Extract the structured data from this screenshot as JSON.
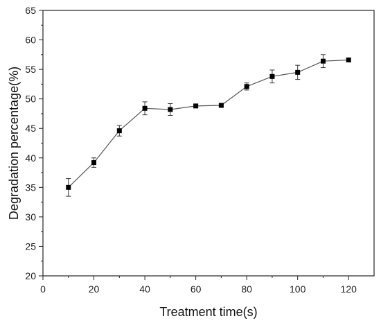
{
  "chart_data": {
    "type": "line",
    "title": "",
    "xlabel": "Treatment time(s)",
    "ylabel": "Degradation percentage(%)",
    "xlim": [
      0,
      130
    ],
    "ylim": [
      20,
      65
    ],
    "xticks": [
      0,
      20,
      40,
      60,
      80,
      100,
      120
    ],
    "yticks": [
      20,
      25,
      30,
      35,
      40,
      45,
      50,
      55,
      60,
      65
    ],
    "grid": false,
    "legend": "none",
    "marker": "square",
    "line_color": "#555555",
    "marker_color": "#000000",
    "series": [
      {
        "x": [
          10,
          20,
          30,
          40,
          50,
          60,
          70,
          80,
          90,
          100,
          110,
          120
        ],
        "values": [
          35.0,
          39.2,
          44.6,
          48.4,
          48.2,
          48.8,
          48.9,
          52.1,
          53.8,
          54.5,
          56.4,
          56.6
        ],
        "error": [
          1.5,
          0.8,
          0.9,
          1.1,
          1.0,
          0.2,
          0.2,
          0.6,
          1.1,
          1.2,
          1.1,
          0.3
        ]
      }
    ]
  }
}
